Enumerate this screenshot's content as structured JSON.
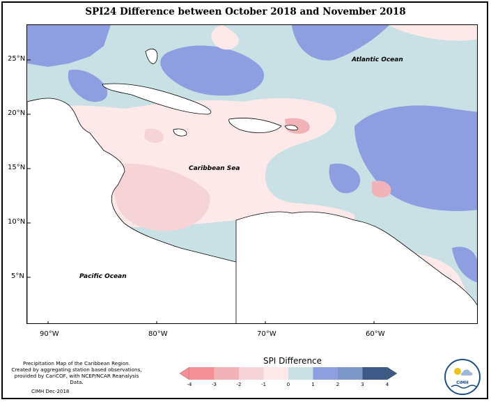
{
  "title": "SPI24 Difference between October 2018 and November 2018",
  "ocean_labels": {
    "atlantic": "Atlantic Ocean",
    "caribbean": "Caribbean Sea",
    "pacific": "Pacific Ocean"
  },
  "axes": {
    "x_ticks": [
      "90°W",
      "80°W",
      "70°W",
      "60°W"
    ],
    "y_ticks": [
      "25°N",
      "20°N",
      "15°N",
      "10°N",
      "5°N"
    ]
  },
  "legend": {
    "title": "SPI Difference",
    "ticks": [
      "-4",
      "-3",
      "-2",
      "-1",
      "0",
      "1",
      "2",
      "3",
      "4"
    ],
    "colors": [
      "#f48f96",
      "#f2b3b8",
      "#f5d3d6",
      "#fde9ea",
      "#c9e0e4",
      "#8d9fe0",
      "#7c98c8",
      "#3d5a86"
    ]
  },
  "credit": {
    "line1": "Precipitation Map of the Caribbean Region.",
    "line2": "Created by aggregating station based observations,",
    "line3": "provided by CariCOF, with NCEP/NCAR Reanalysis Data."
  },
  "date_note": "CIMH Dec-2018",
  "logo": {
    "text": "CIMH"
  },
  "colors": {
    "pale_blue": "#c9e0e4",
    "medium_blue": "#8d9fe0",
    "pale_pink": "#fde9ea",
    "light_pink": "#f5d3d6",
    "pink": "#f2b3b8"
  }
}
